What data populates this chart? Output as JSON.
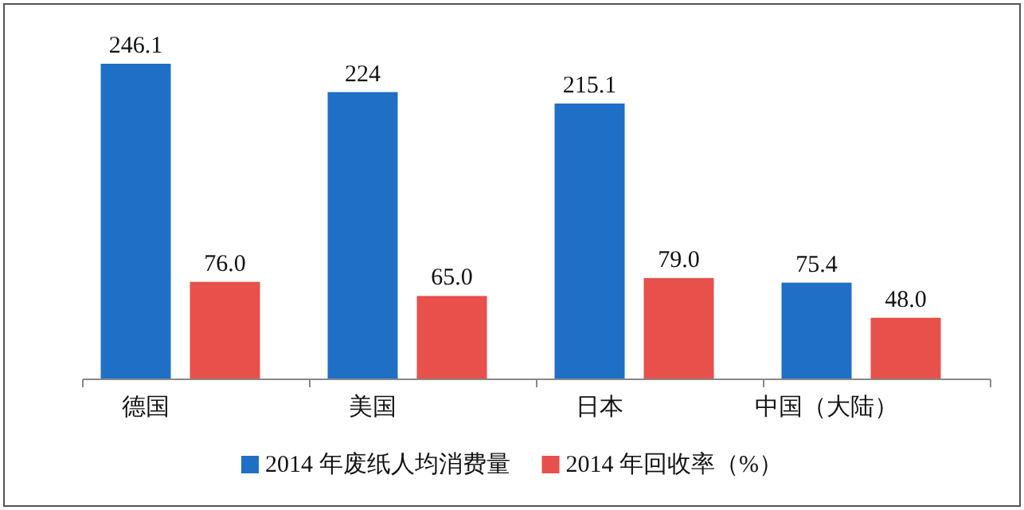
{
  "chart_data": {
    "type": "bar",
    "categories": [
      "德国",
      "美国",
      "日本",
      "中国（大陆）"
    ],
    "series": [
      {
        "name": "2014 年废纸人均消费量",
        "color": "#1f6fc7",
        "values": [
          246.1,
          224,
          215.1,
          75.4
        ],
        "value_labels": [
          "246.1",
          "224",
          "215.1",
          "75.4"
        ]
      },
      {
        "name": "2014 年回收率（%）",
        "color": "#e8504b",
        "values": [
          76.0,
          65.0,
          79.0,
          48.0
        ],
        "value_labels": [
          "76.0",
          "65.0",
          "79.0",
          "48.0"
        ]
      }
    ],
    "legend": "bottom"
  }
}
